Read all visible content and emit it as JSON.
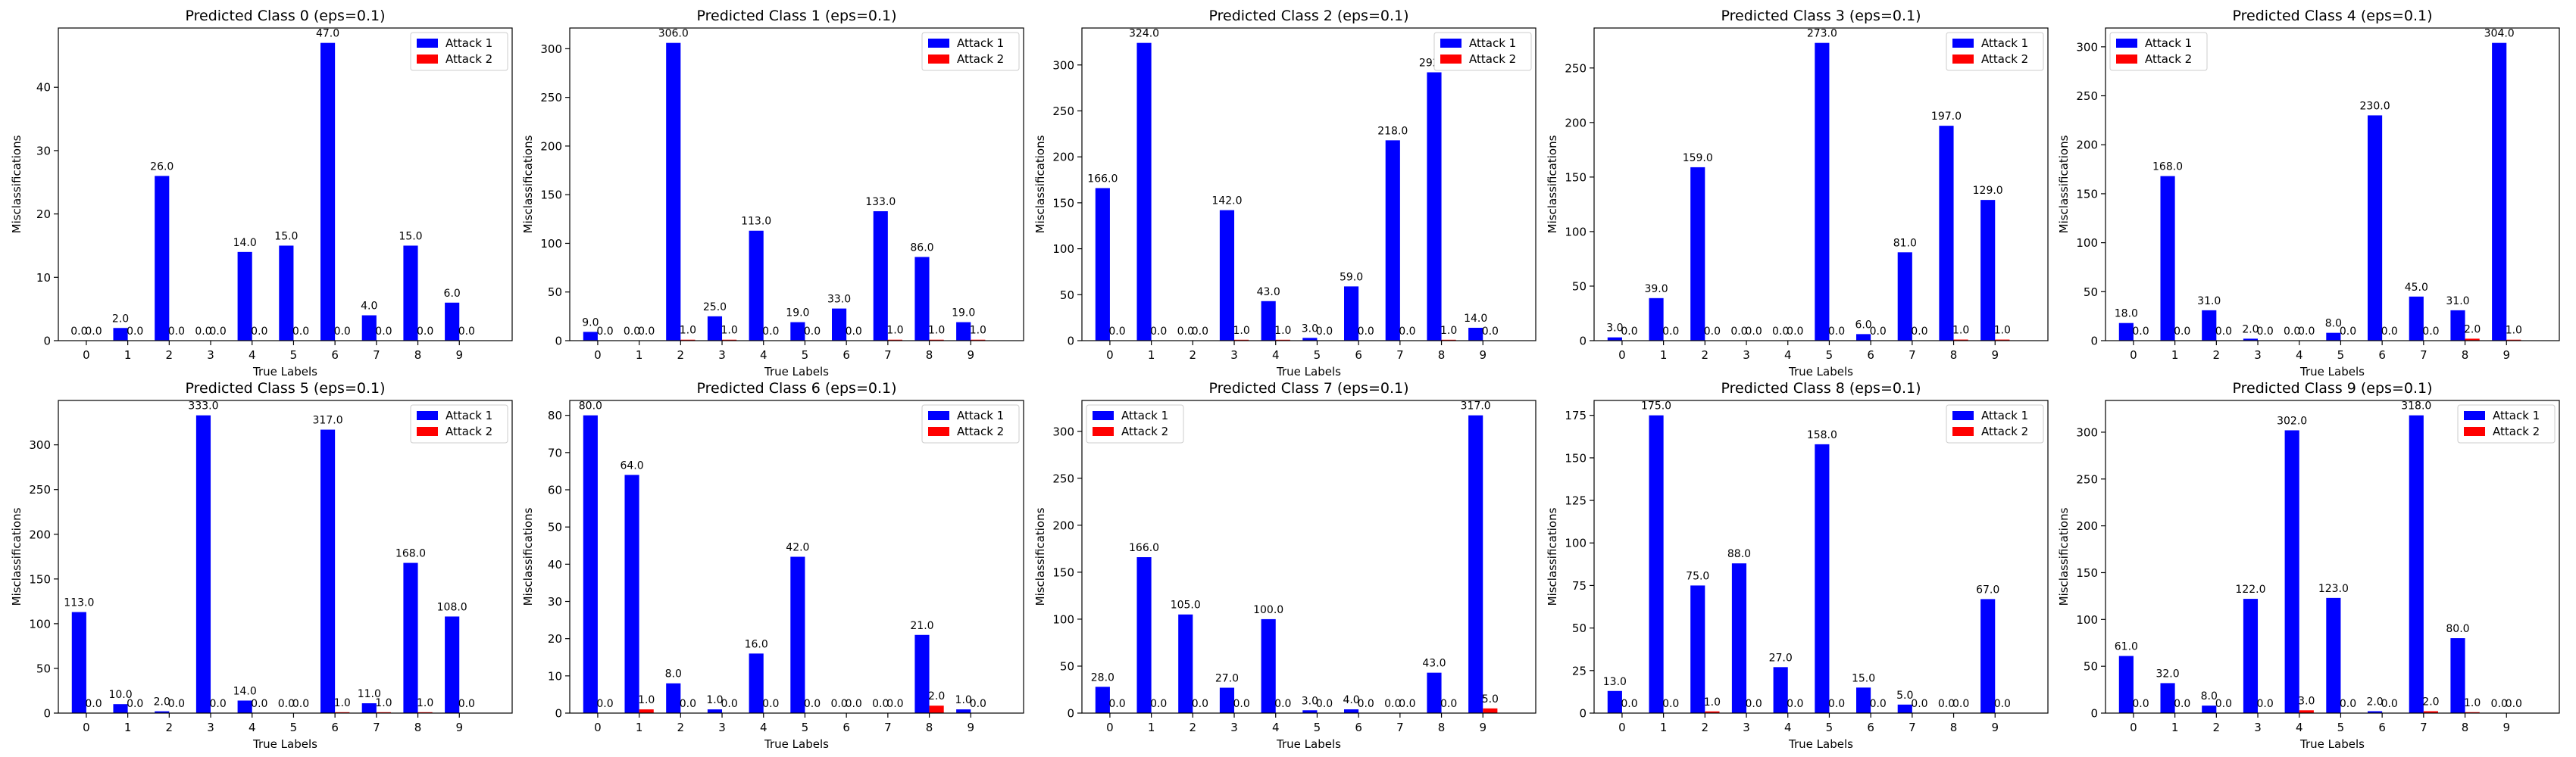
{
  "labels": {
    "xlabel": "True Labels",
    "ylabel": "Misclassifications",
    "legend": [
      "Attack 1",
      "Attack 2"
    ]
  },
  "colors": {
    "attack1": "#0000ff",
    "attack2": "#ff0000"
  },
  "chart_data": [
    {
      "type": "bar",
      "title": "Predicted Class 0 (eps=0.1)",
      "categories": [
        "0",
        "1",
        "2",
        "3",
        "4",
        "5",
        "6",
        "7",
        "8",
        "9"
      ],
      "series": [
        {
          "name": "Attack 1",
          "values": [
            0,
            2,
            26,
            0,
            14,
            15,
            47,
            4,
            15,
            6
          ]
        },
        {
          "name": "Attack 2",
          "values": [
            0,
            0,
            0,
            0,
            0,
            0,
            0,
            0,
            0,
            0
          ]
        }
      ],
      "ylim": [
        0,
        49.35
      ],
      "yticks": [
        0,
        10,
        20,
        30,
        40
      ],
      "legend": "top-right",
      "xlabel": "True Labels",
      "ylabel": "Misclassifications"
    },
    {
      "type": "bar",
      "title": "Predicted Class 1 (eps=0.1)",
      "categories": [
        "0",
        "1",
        "2",
        "3",
        "4",
        "5",
        "6",
        "7",
        "8",
        "9"
      ],
      "series": [
        {
          "name": "Attack 1",
          "values": [
            9,
            0,
            306,
            25,
            113,
            19,
            33,
            133,
            86,
            19
          ]
        },
        {
          "name": "Attack 2",
          "values": [
            0,
            0,
            1,
            1,
            0,
            0,
            0,
            1,
            1,
            1
          ]
        }
      ],
      "ylim": [
        0,
        321.3
      ],
      "yticks": [
        0,
        50,
        100,
        150,
        200,
        250,
        300
      ],
      "legend": "top-right",
      "xlabel": "True Labels",
      "ylabel": "Misclassifications"
    },
    {
      "type": "bar",
      "title": "Predicted Class 2 (eps=0.1)",
      "categories": [
        "0",
        "1",
        "2",
        "3",
        "4",
        "5",
        "6",
        "7",
        "8",
        "9"
      ],
      "series": [
        {
          "name": "Attack 1",
          "values": [
            166,
            324,
            0,
            142,
            43,
            3,
            59,
            218,
            292,
            14
          ]
        },
        {
          "name": "Attack 2",
          "values": [
            0,
            0,
            0,
            1,
            1,
            0,
            0,
            0,
            1,
            0
          ]
        }
      ],
      "ylim": [
        0,
        340.2
      ],
      "yticks": [
        0,
        50,
        100,
        150,
        200,
        250,
        300
      ],
      "legend": "top-right",
      "xlabel": "True Labels",
      "ylabel": "Misclassifications"
    },
    {
      "type": "bar",
      "title": "Predicted Class 3 (eps=0.1)",
      "categories": [
        "0",
        "1",
        "2",
        "3",
        "4",
        "5",
        "6",
        "7",
        "8",
        "9"
      ],
      "series": [
        {
          "name": "Attack 1",
          "values": [
            3,
            39,
            159,
            0,
            0,
            273,
            6,
            81,
            197,
            129
          ]
        },
        {
          "name": "Attack 2",
          "values": [
            0,
            0,
            0,
            0,
            0,
            0,
            0,
            0,
            1,
            1
          ]
        }
      ],
      "ylim": [
        0,
        286.65
      ],
      "yticks": [
        0,
        50,
        100,
        150,
        200,
        250
      ],
      "legend": "top-right",
      "xlabel": "True Labels",
      "ylabel": "Misclassifications"
    },
    {
      "type": "bar",
      "title": "Predicted Class 4 (eps=0.1)",
      "categories": [
        "0",
        "1",
        "2",
        "3",
        "4",
        "5",
        "6",
        "7",
        "8",
        "9"
      ],
      "series": [
        {
          "name": "Attack 1",
          "values": [
            18,
            168,
            31,
            2,
            0,
            8,
            230,
            45,
            31,
            304
          ]
        },
        {
          "name": "Attack 2",
          "values": [
            0,
            0,
            0,
            0,
            0,
            0,
            0,
            0,
            2,
            1
          ]
        }
      ],
      "ylim": [
        0,
        319.2
      ],
      "yticks": [
        0,
        50,
        100,
        150,
        200,
        250,
        300
      ],
      "legend": "top-left",
      "xlabel": "True Labels",
      "ylabel": "Misclassifications"
    },
    {
      "type": "bar",
      "title": "Predicted Class 5 (eps=0.1)",
      "categories": [
        "0",
        "1",
        "2",
        "3",
        "4",
        "5",
        "6",
        "7",
        "8",
        "9"
      ],
      "series": [
        {
          "name": "Attack 1",
          "values": [
            113,
            10,
            2,
            333,
            14,
            0,
            317,
            11,
            168,
            108
          ]
        },
        {
          "name": "Attack 2",
          "values": [
            0,
            0,
            0,
            0,
            0,
            0,
            1,
            1,
            1,
            0
          ]
        }
      ],
      "ylim": [
        0,
        349.65
      ],
      "yticks": [
        0,
        50,
        100,
        150,
        200,
        250,
        300
      ],
      "legend": "top-right",
      "xlabel": "True Labels",
      "ylabel": "Misclassifications"
    },
    {
      "type": "bar",
      "title": "Predicted Class 6 (eps=0.1)",
      "categories": [
        "0",
        "1",
        "2",
        "3",
        "4",
        "5",
        "6",
        "7",
        "8",
        "9"
      ],
      "series": [
        {
          "name": "Attack 1",
          "values": [
            80,
            64,
            8,
            1,
            16,
            42,
            0,
            0,
            21,
            1
          ]
        },
        {
          "name": "Attack 2",
          "values": [
            0,
            1,
            0,
            0,
            0,
            0,
            0,
            0,
            2,
            0
          ]
        }
      ],
      "ylim": [
        0,
        84
      ],
      "yticks": [
        0,
        10,
        20,
        30,
        40,
        50,
        60,
        70,
        80
      ],
      "legend": "top-right",
      "xlabel": "True Labels",
      "ylabel": "Misclassifications"
    },
    {
      "type": "bar",
      "title": "Predicted Class 7 (eps=0.1)",
      "categories": [
        "0",
        "1",
        "2",
        "3",
        "4",
        "5",
        "6",
        "7",
        "8",
        "9"
      ],
      "series": [
        {
          "name": "Attack 1",
          "values": [
            28,
            166,
            105,
            27,
            100,
            3,
            4,
            0,
            43,
            317
          ]
        },
        {
          "name": "Attack 2",
          "values": [
            0,
            0,
            0,
            0,
            0,
            0,
            0,
            0,
            0,
            5
          ]
        }
      ],
      "ylim": [
        0,
        332.85
      ],
      "yticks": [
        0,
        50,
        100,
        150,
        200,
        250,
        300
      ],
      "legend": "top-left",
      "xlabel": "True Labels",
      "ylabel": "Misclassifications"
    },
    {
      "type": "bar",
      "title": "Predicted Class 8 (eps=0.1)",
      "categories": [
        "0",
        "1",
        "2",
        "3",
        "4",
        "5",
        "6",
        "7",
        "8",
        "9"
      ],
      "series": [
        {
          "name": "Attack 1",
          "values": [
            13,
            175,
            75,
            88,
            27,
            158,
            15,
            5,
            0,
            67
          ]
        },
        {
          "name": "Attack 2",
          "values": [
            0,
            0,
            1,
            0,
            0,
            0,
            0,
            0,
            0,
            0
          ]
        }
      ],
      "ylim": [
        0,
        183.75
      ],
      "yticks": [
        0,
        25,
        50,
        75,
        100,
        125,
        150,
        175
      ],
      "legend": "top-right",
      "xlabel": "True Labels",
      "ylabel": "Misclassifications"
    },
    {
      "type": "bar",
      "title": "Predicted Class 9 (eps=0.1)",
      "categories": [
        "0",
        "1",
        "2",
        "3",
        "4",
        "5",
        "6",
        "7",
        "8",
        "9"
      ],
      "series": [
        {
          "name": "Attack 1",
          "values": [
            61,
            32,
            8,
            122,
            302,
            123,
            2,
            318,
            80,
            0
          ]
        },
        {
          "name": "Attack 2",
          "values": [
            0,
            0,
            0,
            0,
            3,
            0,
            0,
            2,
            1,
            0
          ]
        }
      ],
      "ylim": [
        0,
        333.9
      ],
      "yticks": [
        0,
        50,
        100,
        150,
        200,
        250,
        300
      ],
      "legend": "top-right",
      "xlabel": "True Labels",
      "ylabel": "Misclassifications"
    }
  ]
}
